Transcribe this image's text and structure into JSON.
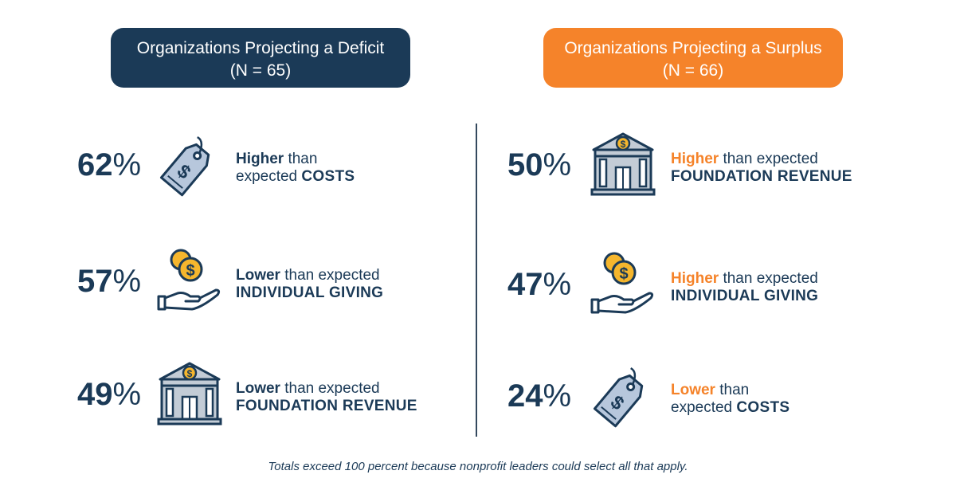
{
  "colors": {
    "navy": "#1b3a57",
    "orange": "#f5832a",
    "icon_fill": "#b7c7dc",
    "coin": "#f5b62d"
  },
  "left": {
    "title_line1": "Organizations Projecting a Deficit",
    "title_line2": "(N = 65)",
    "items": [
      {
        "value": "62",
        "symbol": "%",
        "icon": "price-tag-icon",
        "word1": "Higher",
        "mid": " than",
        "line2_prefix": "expected ",
        "caps": "COSTS"
      },
      {
        "value": "57",
        "symbol": "%",
        "icon": "hand-coins-icon",
        "word1": "Lower",
        "mid": " than expected",
        "line2_prefix": "",
        "caps": "INDIVIDUAL GIVING"
      },
      {
        "value": "49",
        "symbol": "%",
        "icon": "bank-building-icon",
        "word1": "Lower",
        "mid": " than expected",
        "line2_prefix": "",
        "caps": "FOUNDATION REVENUE"
      }
    ]
  },
  "right": {
    "title_line1": "Organizations Projecting a Surplus",
    "title_line2": "(N = 66)",
    "items": [
      {
        "value": "50",
        "symbol": "%",
        "icon": "bank-building-icon",
        "word1": "Higher",
        "mid": " than expected",
        "line2_prefix": "",
        "caps": "FOUNDATION REVENUE"
      },
      {
        "value": "47",
        "symbol": "%",
        "icon": "hand-coins-icon",
        "word1": "Higher",
        "mid": " than expected",
        "line2_prefix": "",
        "caps": "INDIVIDUAL GIVING"
      },
      {
        "value": "24",
        "symbol": "%",
        "icon": "price-tag-icon",
        "word1": "Lower",
        "mid": " than",
        "line2_prefix": "expected ",
        "caps": "COSTS"
      }
    ]
  },
  "footnote": "Totals exceed 100 percent because nonprofit leaders could select all that apply."
}
